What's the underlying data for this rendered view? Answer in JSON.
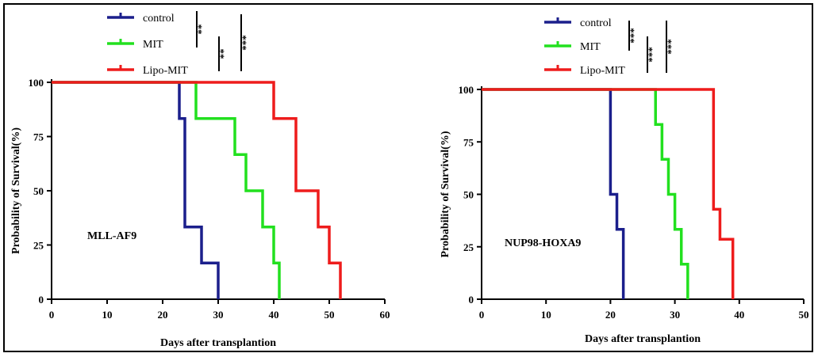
{
  "chart_data": [
    {
      "type": "line",
      "subtype": "kaplan-meier-step",
      "panel_label": "MLL-AF9",
      "xlabel": "Days after transplantion",
      "ylabel": "Probability of Survival(%)",
      "xlim": [
        0,
        60
      ],
      "ylim": [
        0,
        100
      ],
      "xticks": [
        0,
        10,
        20,
        30,
        40,
        50,
        60
      ],
      "yticks": [
        0,
        25,
        50,
        75,
        100
      ],
      "legend_position": "top-center",
      "series": [
        {
          "name": "control",
          "color": "#1b1f8c",
          "x": [
            0,
            23,
            24,
            27,
            30
          ],
          "y": [
            100,
            83.3,
            33.3,
            16.7,
            0
          ]
        },
        {
          "name": "MIT",
          "color": "#22e01f",
          "x": [
            0,
            26,
            33,
            35,
            38,
            40,
            41
          ],
          "y": [
            100,
            83.3,
            66.7,
            50,
            33.3,
            16.7,
            0
          ]
        },
        {
          "name": "Lipo-MIT",
          "color": "#ee1c1c",
          "x": [
            0,
            40,
            44,
            48,
            50,
            52
          ],
          "y": [
            100,
            83.3,
            50,
            33.3,
            16.7,
            0
          ]
        }
      ],
      "significance": [
        "**",
        "**",
        "***"
      ]
    },
    {
      "type": "line",
      "subtype": "kaplan-meier-step",
      "panel_label": "NUP98-HOXA9",
      "xlabel": "Days after transplantion",
      "ylabel": "Probability of Survival(%)",
      "xlim": [
        0,
        50
      ],
      "ylim": [
        0,
        100
      ],
      "xticks": [
        0,
        10,
        20,
        30,
        40,
        50
      ],
      "yticks": [
        0,
        25,
        50,
        75,
        100
      ],
      "legend_position": "top-center",
      "series": [
        {
          "name": "control",
          "color": "#1b1f8c",
          "x": [
            0,
            20,
            21,
            22
          ],
          "y": [
            100,
            50,
            33.3,
            0
          ]
        },
        {
          "name": "MIT",
          "color": "#22e01f",
          "x": [
            0,
            27,
            28,
            29,
            30,
            31,
            32
          ],
          "y": [
            100,
            83.3,
            66.7,
            50,
            33.3,
            16.7,
            0
          ]
        },
        {
          "name": "Lipo-MIT",
          "color": "#ee1c1c",
          "x": [
            0,
            36,
            37,
            39
          ],
          "y": [
            100,
            42.9,
            28.6,
            0
          ]
        }
      ],
      "significance": [
        "***",
        "***",
        "***"
      ]
    }
  ]
}
